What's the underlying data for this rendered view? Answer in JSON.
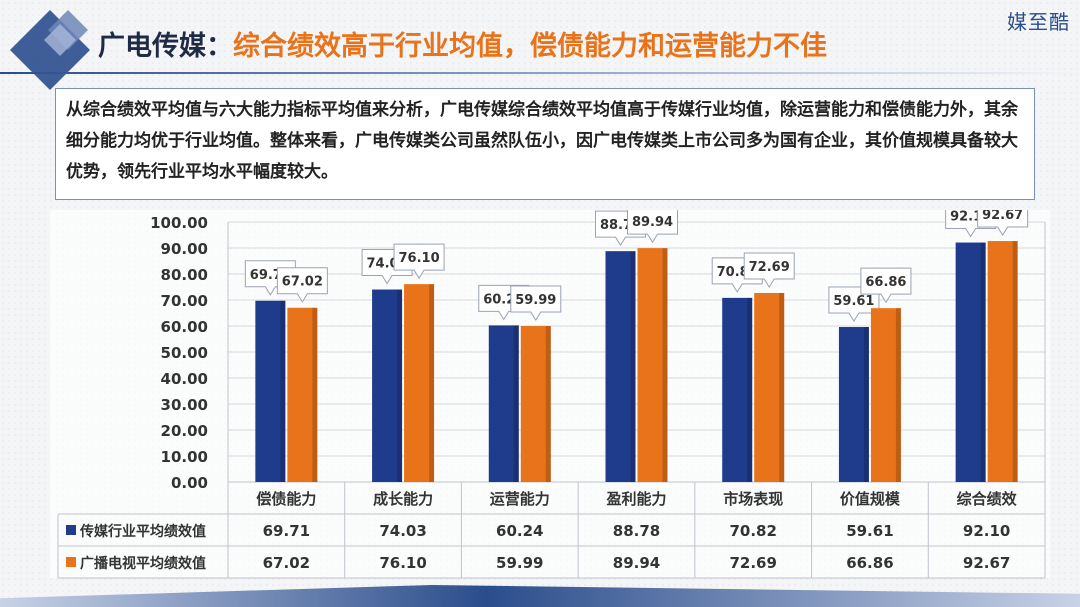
{
  "brand": "媒至酷",
  "title": {
    "prefix": "广电传媒：",
    "main": "综合绩效高于行业均值，偿债能力和运营能力不佳"
  },
  "summary": "从综合绩效平均值与六大能力指标平均值来分析，广电传媒综合绩效平均值高于传媒行业均值，除运营能力和偿债能力外，其余细分能力均优于行业均值。整体来看，广电传媒类公司虽然队伍小，因广电传媒类上市公司多为国有企业，其价值规模具备较大优势，领先行业平均水平幅度较大。",
  "colors": {
    "series1": "#1f3c8c",
    "series2": "#e8731a",
    "accent": "#2b4d8c"
  },
  "chart_data": {
    "type": "bar",
    "categories": [
      "偿债能力",
      "成长能力",
      "运营能力",
      "盈利能力",
      "市场表现",
      "价值规模",
      "综合绩效"
    ],
    "series": [
      {
        "name": "传媒行业平均绩效值",
        "values": [
          69.71,
          74.03,
          60.24,
          88.78,
          70.82,
          59.61,
          92.1
        ]
      },
      {
        "name": "广播电视平均绩效值",
        "values": [
          67.02,
          76.1,
          59.99,
          89.94,
          72.69,
          66.86,
          92.67
        ]
      }
    ],
    "yticks": [
      "0.00",
      "10.00",
      "20.00",
      "30.00",
      "40.00",
      "50.00",
      "60.00",
      "70.00",
      "80.00",
      "90.00",
      "100.00"
    ],
    "ylim": [
      0,
      100
    ],
    "grid": true,
    "legend": "bottom data table"
  }
}
